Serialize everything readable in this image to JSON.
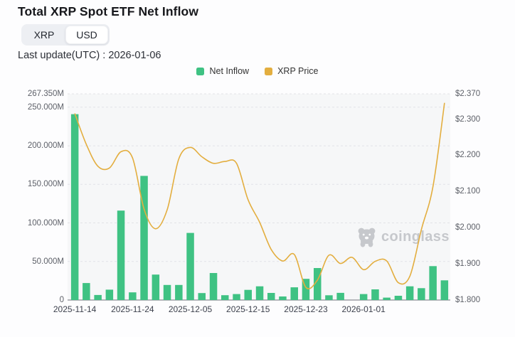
{
  "header": {
    "title": "Total XRP Spot ETF Net Inflow",
    "toggle": {
      "options": [
        "XRP",
        "USD"
      ],
      "selected": "USD"
    },
    "last_update": "Last update(UTC) : 2026-01-06"
  },
  "legend": [
    {
      "label": "Net Inflow",
      "color": "#3fc283"
    },
    {
      "label": "XRP Price",
      "color": "#e3ae3f"
    }
  ],
  "watermark": "coinglass",
  "colors": {
    "bar": "#3fc283",
    "line": "#e3ae3f",
    "grid": "#e2e3e7",
    "axis_line": "#6E7079",
    "plot_bg": "#f6f7f8"
  },
  "chart_data": {
    "type": "bar+line",
    "title": "Total XRP Spot ETF Net Inflow",
    "grid": true,
    "legend_position": "top",
    "x_tick_labels": [
      "2025-11-14",
      "2025-11-24",
      "2025-12-05",
      "2025-12-15",
      "2025-12-23",
      "2026-01-01"
    ],
    "x_tick_slots": [
      0,
      5,
      10,
      15,
      20,
      25
    ],
    "num_slots": 33,
    "yaxis_left": {
      "title": "Net Inflow (USD)",
      "labels": [
        "267.350M",
        "250.000M",
        "200.000M",
        "150.000M",
        "100.000M",
        "50.000M",
        "0"
      ],
      "values": [
        267.35,
        250,
        200,
        150,
        100,
        50,
        0
      ],
      "min": 0,
      "max": 267.35
    },
    "yaxis_right": {
      "title": "XRP Price",
      "labels": [
        "$2.370",
        "$2.300",
        "$2.200",
        "$2.100",
        "$2.000",
        "$1.900",
        "$1.800"
      ],
      "values": [
        2.37,
        2.3,
        2.2,
        2.1,
        2.0,
        1.9,
        1.8
      ],
      "min": 1.8,
      "max": 2.37
    },
    "series": [
      {
        "name": "Net Inflow",
        "type": "bar",
        "unit": "million USD",
        "color": "#3fc283",
        "values": [
          241,
          22,
          6.5,
          13.5,
          116,
          10,
          161,
          33,
          19.5,
          19.5,
          87,
          9,
          35,
          6.3,
          7.7,
          13.2,
          17.8,
          9.2,
          4.6,
          16.5,
          27.5,
          41.5,
          6.2,
          9.3,
          0,
          7.7,
          13.8,
          3.1,
          5.5,
          17.8,
          15.4,
          44,
          25.5
        ]
      },
      {
        "name": "XRP Price",
        "type": "line",
        "unit": "USD",
        "color": "#e3ae3f",
        "values": [
          2.316,
          2.23,
          2.17,
          2.165,
          2.21,
          2.193,
          2.051,
          1.997,
          2.05,
          2.19,
          2.222,
          2.196,
          2.178,
          2.183,
          2.178,
          2.077,
          2.015,
          1.94,
          1.908,
          1.926,
          1.835,
          1.855,
          1.924,
          1.901,
          1.918,
          1.884,
          1.907,
          1.908,
          1.848,
          1.866,
          1.995,
          2.113,
          2.345
        ]
      }
    ]
  }
}
